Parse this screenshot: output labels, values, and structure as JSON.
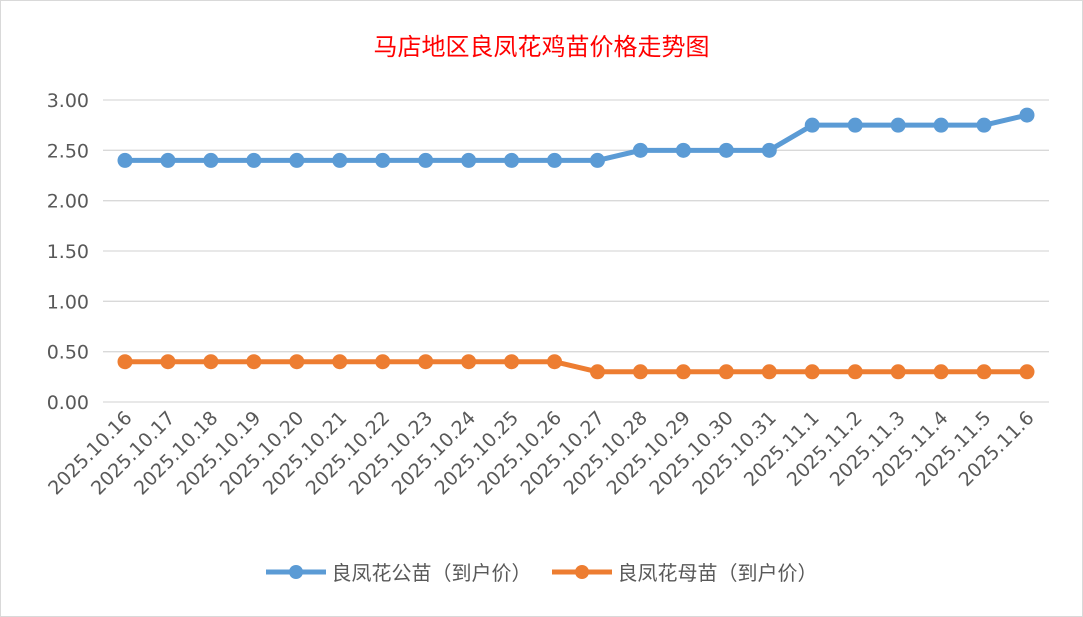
{
  "chart_data": {
    "type": "line",
    "title": "马店地区良凤花鸡苗价格走势图",
    "categories": [
      "2025.10.16",
      "2025.10.17",
      "2025.10.18",
      "2025.10.19",
      "2025.10.20",
      "2025.10.21",
      "2025.10.22",
      "2025.10.23",
      "2025.10.24",
      "2025.10.25",
      "2025.10.26",
      "2025.10.27",
      "2025.10.28",
      "2025.10.29",
      "2025.10.30",
      "2025.10.31",
      "2025.11.1",
      "2025.11.2",
      "2025.11.3",
      "2025.11.4",
      "2025.11.5",
      "2025.11.6"
    ],
    "series": [
      {
        "name": "良凤花公苗（到户价）",
        "color": "#5b9bd5",
        "values": [
          2.4,
          2.4,
          2.4,
          2.4,
          2.4,
          2.4,
          2.4,
          2.4,
          2.4,
          2.4,
          2.4,
          2.4,
          2.5,
          2.5,
          2.5,
          2.5,
          2.75,
          2.75,
          2.75,
          2.75,
          2.75,
          2.85
        ]
      },
      {
        "name": "良凤花母苗（到户价）",
        "color": "#ed7d31",
        "values": [
          0.4,
          0.4,
          0.4,
          0.4,
          0.4,
          0.4,
          0.4,
          0.4,
          0.4,
          0.4,
          0.4,
          0.3,
          0.3,
          0.3,
          0.3,
          0.3,
          0.3,
          0.3,
          0.3,
          0.3,
          0.3,
          0.3
        ]
      }
    ],
    "yticks": [
      "0.00",
      "0.50",
      "1.00",
      "1.50",
      "2.00",
      "2.50",
      "3.00"
    ],
    "ylim": [
      0,
      3
    ],
    "grid": true,
    "legend": "bottom"
  }
}
